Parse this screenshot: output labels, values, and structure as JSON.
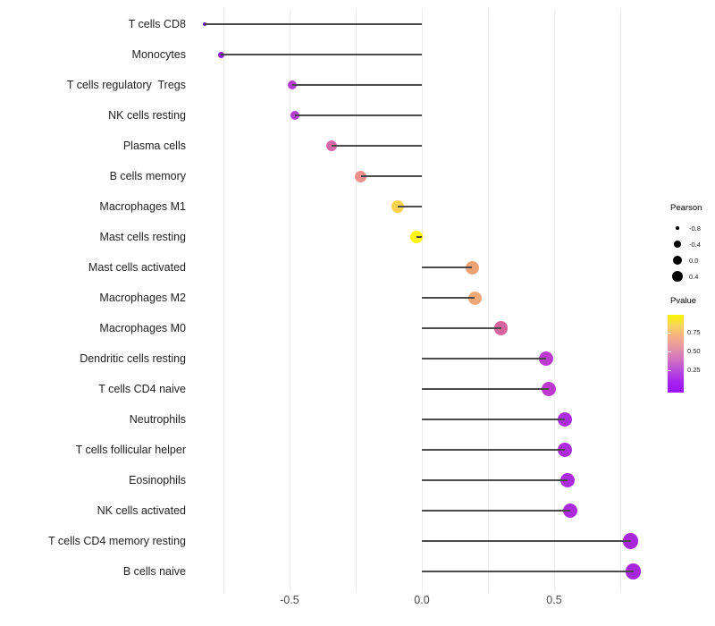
{
  "chart_data": {
    "type": "lollipop",
    "title": "",
    "xlabel": "",
    "ylabel": "",
    "x_axis": {
      "ticks": [
        {
          "label": "-0.5",
          "value": -0.5
        },
        {
          "label": "0.0",
          "value": 0.0
        },
        {
          "label": "0.5",
          "value": 0.5
        }
      ],
      "gridline_values": [
        -0.75,
        -0.5,
        -0.25,
        0.0,
        0.25,
        0.5,
        0.75
      ],
      "xlim": [
        -0.87,
        0.83
      ]
    },
    "rows": [
      {
        "label": "T cells CD8",
        "pearson": -0.82,
        "color": "#6018b4",
        "r": 2.0
      },
      {
        "label": "Monocytes",
        "pearson": -0.76,
        "color": "#8a21d8",
        "r": 3.5
      },
      {
        "label": "T cells regulatory  Tregs",
        "pearson": -0.49,
        "color": "#b43cd4",
        "r": 5.0
      },
      {
        "label": "NK cells resting",
        "pearson": -0.48,
        "color": "#b43cd4",
        "r": 5.2
      },
      {
        "label": "Plasma cells",
        "pearson": -0.34,
        "color": "#d667a8",
        "r": 6.0
      },
      {
        "label": "B cells memory",
        "pearson": -0.23,
        "color": "#ec908e",
        "r": 6.5
      },
      {
        "label": "Macrophages M1",
        "pearson": -0.09,
        "color": "#f8d14e",
        "r": 7.0
      },
      {
        "label": "Mast cells resting",
        "pearson": -0.02,
        "color": "#fdf604",
        "r": 7.3
      },
      {
        "label": "Mast cells activated",
        "pearson": 0.19,
        "color": "#eda273",
        "r": 7.5
      },
      {
        "label": "Macrophages M2",
        "pearson": 0.2,
        "color": "#f0a878",
        "r": 7.5
      },
      {
        "label": "Macrophages M0",
        "pearson": 0.3,
        "color": "#d6659e",
        "r": 7.7
      },
      {
        "label": "Dendritic cells resting",
        "pearson": 0.47,
        "color": "#bb3ad0",
        "r": 8.0
      },
      {
        "label": "T cells CD4 naive",
        "pearson": 0.48,
        "color": "#bb3ad0",
        "r": 8.0
      },
      {
        "label": "Neutrophils",
        "pearson": 0.54,
        "color": "#ac2bdf",
        "r": 8.2
      },
      {
        "label": "T cells follicular helper",
        "pearson": 0.54,
        "color": "#ac2bdf",
        "r": 8.2
      },
      {
        "label": "Eosinophils",
        "pearson": 0.55,
        "color": "#ac2bdf",
        "r": 8.2
      },
      {
        "label": "NK cells activated",
        "pearson": 0.56,
        "color": "#ac2bdf",
        "r": 8.2
      },
      {
        "label": "T cells CD4 memory resting",
        "pearson": 0.79,
        "color": "#a826dc",
        "r": 8.6
      },
      {
        "label": "B cells naive",
        "pearson": 0.8,
        "color": "#a826dc",
        "r": 8.6
      }
    ],
    "legend_pearson": {
      "title": "Pearson",
      "items": [
        {
          "label": "-0.8",
          "r": 1.8
        },
        {
          "label": "-0.4",
          "r": 3.8
        },
        {
          "label": "0.0",
          "r": 5.0
        },
        {
          "label": "0.4",
          "r": 6.2
        }
      ]
    },
    "legend_pvalue": {
      "title": "Pvalue",
      "tick_labels": [
        "0.75",
        "0.50",
        "0.25"
      ],
      "gradient": [
        "#fbf500",
        "#f9d45f",
        "#f4ae85",
        "#e394a6",
        "#d173c0",
        "#bb4ddb",
        "#a724ef",
        "#9c10f6"
      ]
    },
    "stem_color": "#4a4a4a",
    "gridline_color": "#ececec"
  }
}
